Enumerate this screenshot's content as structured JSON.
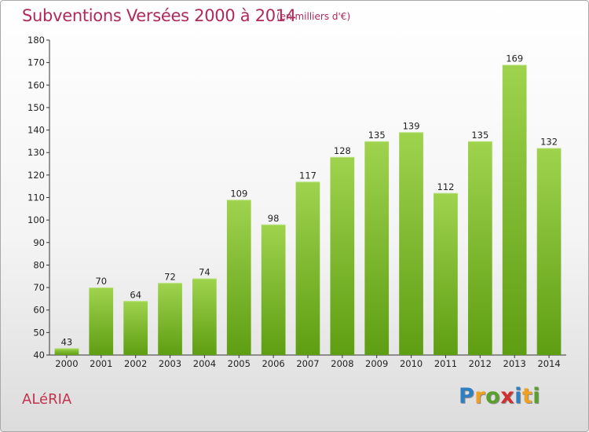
{
  "header": {
    "title": "Subventions Versées 2000 à 2014",
    "unit_note": "(en milliers d'€)"
  },
  "footer": {
    "place": "ALéRIA",
    "logo": {
      "letters": [
        "P",
        "r",
        "o",
        "x",
        "i",
        "t",
        "i"
      ],
      "colors": [
        "#2f7fc1",
        "#f0a020",
        "#5aa02c",
        "#d03030",
        "#2f7fc1",
        "#f0a020",
        "#5aa02c"
      ]
    }
  },
  "chart_data": {
    "type": "bar",
    "title": "Subventions Versées 2000 à 2014",
    "subtitle": "(en milliers d'€)",
    "categories": [
      "2000",
      "2001",
      "2002",
      "2003",
      "2004",
      "2005",
      "2006",
      "2007",
      "2008",
      "2009",
      "2010",
      "2011",
      "2012",
      "2013",
      "2014"
    ],
    "values": [
      43,
      70,
      64,
      72,
      74,
      109,
      98,
      117,
      128,
      135,
      139,
      112,
      135,
      169,
      132
    ],
    "ylim": [
      40,
      180
    ],
    "yticks": [
      40,
      50,
      60,
      70,
      80,
      90,
      100,
      110,
      120,
      130,
      140,
      150,
      160,
      170,
      180
    ],
    "grid": false,
    "bar_color_top": "#9fd34e",
    "bar_color_bottom": "#5e9e12"
  }
}
